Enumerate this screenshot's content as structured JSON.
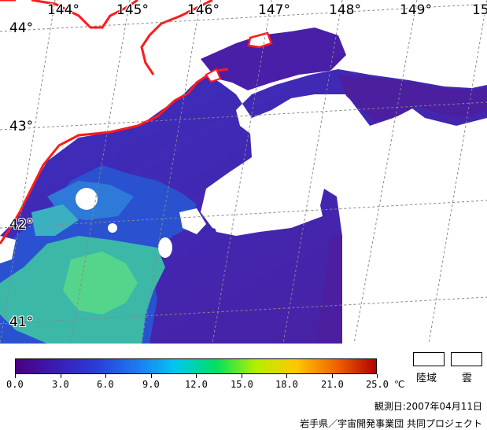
{
  "map": {
    "longitude_labels": [
      "144°",
      "145°",
      "146°",
      "147°",
      "148°",
      "149°",
      "15"
    ],
    "latitude_labels": [
      "44°",
      "43°",
      "42°",
      "41°"
    ]
  },
  "colorbar": {
    "tick_labels": [
      "0.0",
      "3.0",
      "6.0",
      "9.0",
      "12.0",
      "15.0",
      "18.0",
      "21.0",
      "25.0"
    ],
    "unit": "℃",
    "colors": [
      "#4a0082",
      "#3a1cb4",
      "#2a3cd8",
      "#1e78f0",
      "#00c8f0",
      "#00e060",
      "#b4f000",
      "#ffc800",
      "#f06400",
      "#b40000"
    ]
  },
  "legend": {
    "land_label": "陸域",
    "cloud_label": "雲"
  },
  "footer": {
    "observation_date": "観測日:2007年04月11日",
    "credit": "岩手県／宇宙開発事業団 共同プロジェクト"
  },
  "colors": {
    "coast": "#ff1a1a",
    "ocean_deep": "#4b1fa0",
    "ocean_mid": "#3a2fc0",
    "ocean_warm": "#2f8cd8",
    "ocean_green": "#3cc8a0"
  }
}
